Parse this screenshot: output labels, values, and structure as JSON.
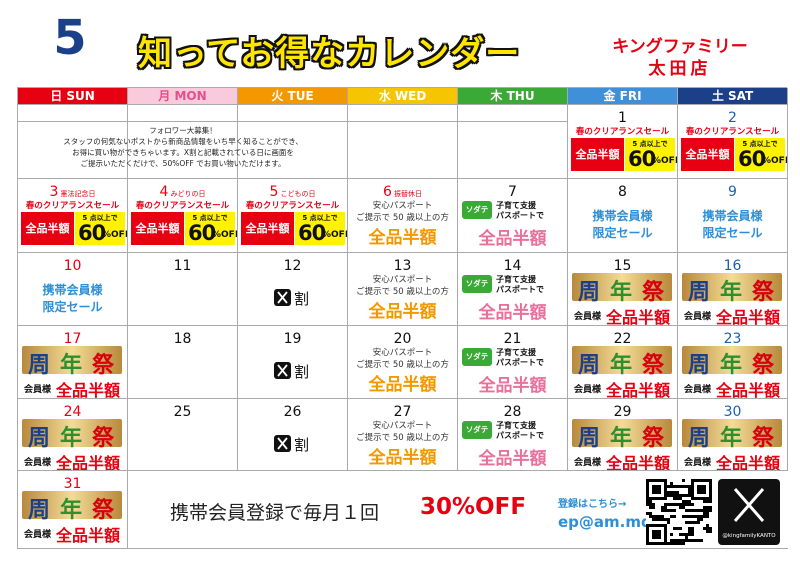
{
  "header": {
    "month": 5,
    "title": "知ってお得なカレンダー",
    "store_line1": "キングファミリー",
    "store_line2": "太田店"
  },
  "weekdays": [
    {
      "label": "日 SUN",
      "bg": "#e60012",
      "fg": "#ffffff"
    },
    {
      "label": "月 MON",
      "bg": "#f9c9dc",
      "fg": "#e4508a"
    },
    {
      "label": "火 TUE",
      "bg": "#f39800",
      "fg": "#ffffff"
    },
    {
      "label": "水 WED",
      "bg": "#f6c500",
      "fg": "#ffffff"
    },
    {
      "label": "木 THU",
      "bg": "#3aa935",
      "fg": "#ffffff"
    },
    {
      "label": "金 FRI",
      "bg": "#3f90d8",
      "fg": "#ffffff"
    },
    {
      "label": "土 SAT",
      "bg": "#1c3f8a",
      "fg": "#ffffff"
    }
  ],
  "notice": [
    "フォロワー大募集！",
    "スタッフの何気ないポストから新商品情報をいち早く知ることができ、",
    "お得に買い物ができちゃいます。X割と記載されている日に画面を",
    "ご提示いただくだけで、50%OFF でお買い物いただけます。"
  ],
  "promos": {
    "sale": {
      "title": "春のクリアランスセール",
      "half": "全品半額",
      "cond": "5 点以上で",
      "pct": "60",
      "off": "%OFF"
    },
    "passport": {
      "line1": "安心パスポート",
      "line2": "ご提示で 50 歳以上の方",
      "offer": "全品半額"
    },
    "sodate": {
      "badge": "ソダテ",
      "line1": "子育て支援",
      "line2": "パスポートで",
      "offer": "全品半額"
    },
    "member": {
      "line1": "携帯会員様",
      "line2": "限定セール"
    },
    "xwari": {
      "text": "割"
    },
    "anniv": {
      "chars": [
        "周",
        "年",
        "祭"
      ],
      "colors": [
        "#1c3f8a",
        "#2f8f2f",
        "#d7000f"
      ],
      "member": "会員様",
      "offer": "全品半額"
    }
  },
  "days": [
    {
      "date": 1,
      "promo": "sale"
    },
    {
      "date": 2,
      "promo": "sale"
    },
    {
      "date": 3,
      "holiday": "憲法記念日",
      "promo": "sale"
    },
    {
      "date": 4,
      "holiday": "みどりの日",
      "promo": "sale"
    },
    {
      "date": 5,
      "holiday": "こどもの日",
      "promo": "sale"
    },
    {
      "date": 6,
      "holiday": "振替休日",
      "promo": "passport"
    },
    {
      "date": 7,
      "promo": "sodate"
    },
    {
      "date": 8,
      "promo": "member"
    },
    {
      "date": 9,
      "promo": "member"
    },
    {
      "date": 10,
      "promo": "member"
    },
    {
      "date": 11
    },
    {
      "date": 12,
      "promo": "xwari"
    },
    {
      "date": 13,
      "promo": "passport"
    },
    {
      "date": 14,
      "promo": "sodate"
    },
    {
      "date": 15,
      "promo": "anniv"
    },
    {
      "date": 16,
      "promo": "anniv"
    },
    {
      "date": 17,
      "promo": "anniv"
    },
    {
      "date": 18
    },
    {
      "date": 19,
      "promo": "xwari"
    },
    {
      "date": 20,
      "promo": "passport"
    },
    {
      "date": 21,
      "promo": "sodate"
    },
    {
      "date": 22,
      "promo": "anniv"
    },
    {
      "date": 23,
      "promo": "anniv"
    },
    {
      "date": 24,
      "promo": "anniv"
    },
    {
      "date": 25
    },
    {
      "date": 26,
      "promo": "xwari"
    },
    {
      "date": 27,
      "promo": "passport"
    },
    {
      "date": 28,
      "promo": "sodate"
    },
    {
      "date": 29,
      "promo": "anniv"
    },
    {
      "date": 30,
      "promo": "anniv"
    },
    {
      "date": 31,
      "promo": "anniv"
    }
  ],
  "footer": {
    "text": "携帯会員登録で毎月１回",
    "highlight": "30%OFF",
    "link_label": "登録はこちら→",
    "email": "ep@am.md",
    "handle": "@kingfamilyKANTO"
  }
}
